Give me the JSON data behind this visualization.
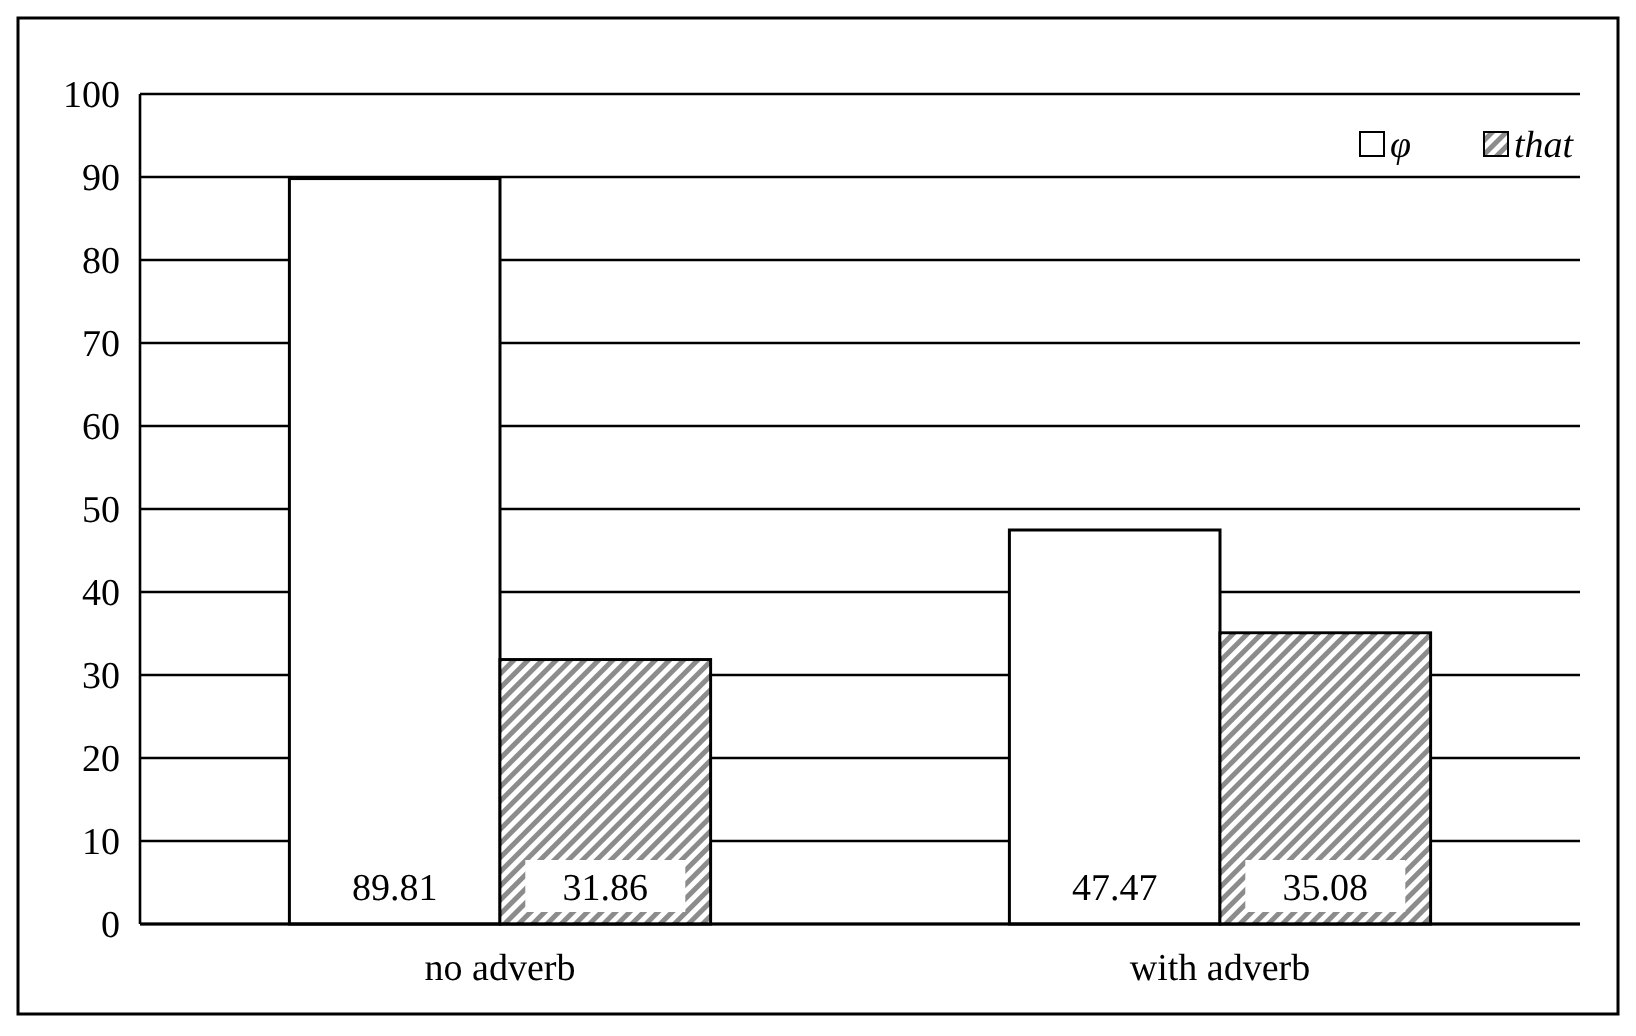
{
  "chart_data": {
    "type": "bar",
    "categories": [
      "no adverb",
      "with adverb"
    ],
    "series": [
      {
        "name": "φ",
        "color": "#ffffff",
        "values": [
          89.81,
          47.47
        ]
      },
      {
        "name": "that",
        "color": "#8c8c8c",
        "values": [
          31.86,
          35.08
        ]
      }
    ],
    "ylim": [
      0,
      100
    ],
    "yticks": [
      0,
      10,
      20,
      30,
      40,
      50,
      60,
      70,
      80,
      90,
      100
    ],
    "grid": "y",
    "legend": "top right",
    "data_labels": true
  }
}
